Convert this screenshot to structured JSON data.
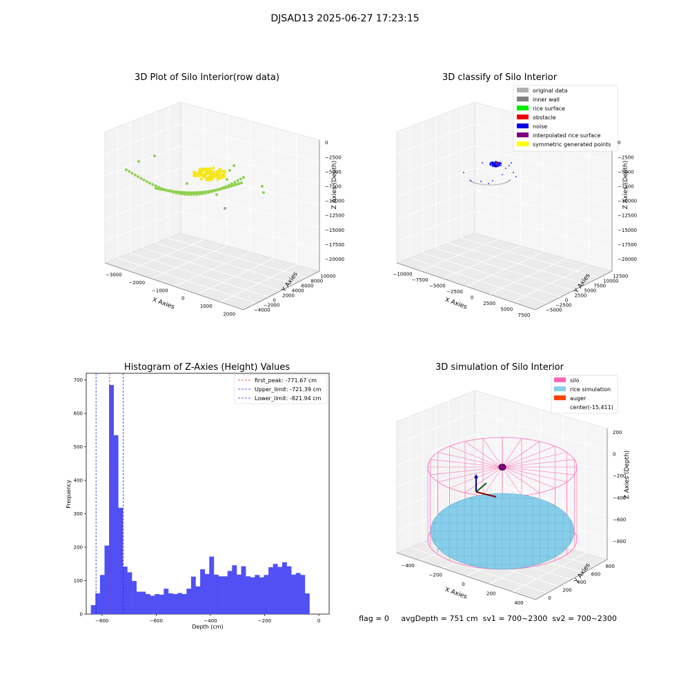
{
  "suptitle": "DJSAD13 2025-06-27 17:23:15",
  "status_line": "flag = 0     avgDepth = 751 cm  sv1 = 700~2300  sv2 = 700~2300",
  "chart_data": [
    {
      "type": "scatter3d",
      "title": "3D Plot of Silo Interior(row data)",
      "xlabel": "X Axies",
      "ylabel": "Y Axies",
      "zlabel": "Z Axies (Depth)",
      "x_ticks": [
        "−3000",
        "−2000",
        "−1000",
        "0",
        "1000",
        "2000"
      ],
      "y_ticks": [
        "−4000",
        "−2000",
        "0",
        "2000",
        "4000",
        "6000",
        "8000",
        "10000"
      ],
      "z_ticks": [
        "0",
        "−2500",
        "−5000",
        "−7500",
        "−10000",
        "−12500",
        "−15000",
        "−17500",
        "−20000"
      ],
      "grid": true,
      "colors": {
        "arc": "#8fd14f",
        "cluster": "#f5e61c",
        "outlier": "#a0a0a0"
      }
    },
    {
      "type": "scatter3d",
      "title": "3D classify of Silo Interior",
      "xlabel": "X Axies",
      "ylabel": "Y Axies",
      "zlabel": "Z Axies (Depth)",
      "x_ticks": [
        "−10000",
        "−7500",
        "−5000",
        "−2500",
        "0",
        "2500",
        "5000",
        "7500"
      ],
      "y_ticks": [
        "−5000",
        "−2500",
        "0",
        "2500",
        "5000",
        "7500",
        "10000",
        "12500"
      ],
      "z_ticks": [
        "0",
        "−2500",
        "−5000",
        "−7500",
        "−10000",
        "−12500",
        "−15000",
        "−17500",
        "−20000"
      ],
      "grid": true,
      "legend": [
        {
          "label": "original data",
          "color": "#b0b0b0"
        },
        {
          "label": "inner wall",
          "color": "#808080"
        },
        {
          "label": "rice surface",
          "color": "#00ee00"
        },
        {
          "label": "obstacle",
          "color": "#ee0000"
        },
        {
          "label": "noise",
          "color": "#0000ee"
        },
        {
          "label": "interpolated rice surface",
          "color": "#800080"
        },
        {
          "label": "symmetric generated points",
          "color": "#ffff00"
        }
      ],
      "legend_position": "top-right"
    },
    {
      "type": "bar",
      "title": "Histogram of Z-Axies (Height) Values",
      "xlabel": "Depth (cm)",
      "ylabel": "Frequency",
      "xlim": [
        -858,
        38
      ],
      "ylim": [
        0,
        720
      ],
      "x_ticks": [
        -800,
        -600,
        -400,
        -200,
        0
      ],
      "y_ticks": [
        0,
        100,
        200,
        300,
        400,
        500,
        600,
        700
      ],
      "bin_start": -841,
      "bin_width": 16.8,
      "values": [
        27,
        62,
        117,
        205,
        685,
        535,
        318,
        142,
        125,
        99,
        67,
        67,
        60,
        55,
        60,
        58,
        76,
        62,
        60,
        63,
        60,
        76,
        112,
        83,
        134,
        120,
        172,
        118,
        113,
        113,
        129,
        146,
        118,
        143,
        113,
        110,
        117,
        110,
        117,
        140,
        150,
        141,
        155,
        143,
        118,
        123,
        117,
        62
      ],
      "bar_color": "#5050f5",
      "vlines": [
        {
          "label": "first_peak: -771.67 cm",
          "value": -771.67,
          "color": "#dd2222"
        },
        {
          "label": "Upper_limit: -721.39 cm",
          "value": -721.39,
          "color": "#2222dd"
        },
        {
          "label": "Lower_limit: -821.94 cm",
          "value": -821.94,
          "color": "#2222dd"
        }
      ],
      "legend_position": "top-right"
    },
    {
      "type": "surface3d",
      "title": "3D simulation of Silo Interior",
      "xlabel": "X Axies",
      "ylabel": "Y Axies",
      "zlabel": "Z Axies (Depth)",
      "x_ticks": [
        "−400",
        "−200",
        "0",
        "200",
        "400"
      ],
      "y_ticks": [
        "0",
        "200",
        "400",
        "600",
        "800"
      ],
      "z_ticks": [
        "200",
        "0",
        "−200",
        "−400",
        "−600",
        "−800"
      ],
      "grid": true,
      "legend": [
        {
          "label": "silo",
          "color": "#ff69b4"
        },
        {
          "label": "rice simulation",
          "color": "#87ceeb"
        },
        {
          "label": "auger",
          "color": "#ff4500"
        },
        {
          "label": "center(-15,411)",
          "color": ""
        }
      ],
      "legend_position": "top-right"
    }
  ]
}
